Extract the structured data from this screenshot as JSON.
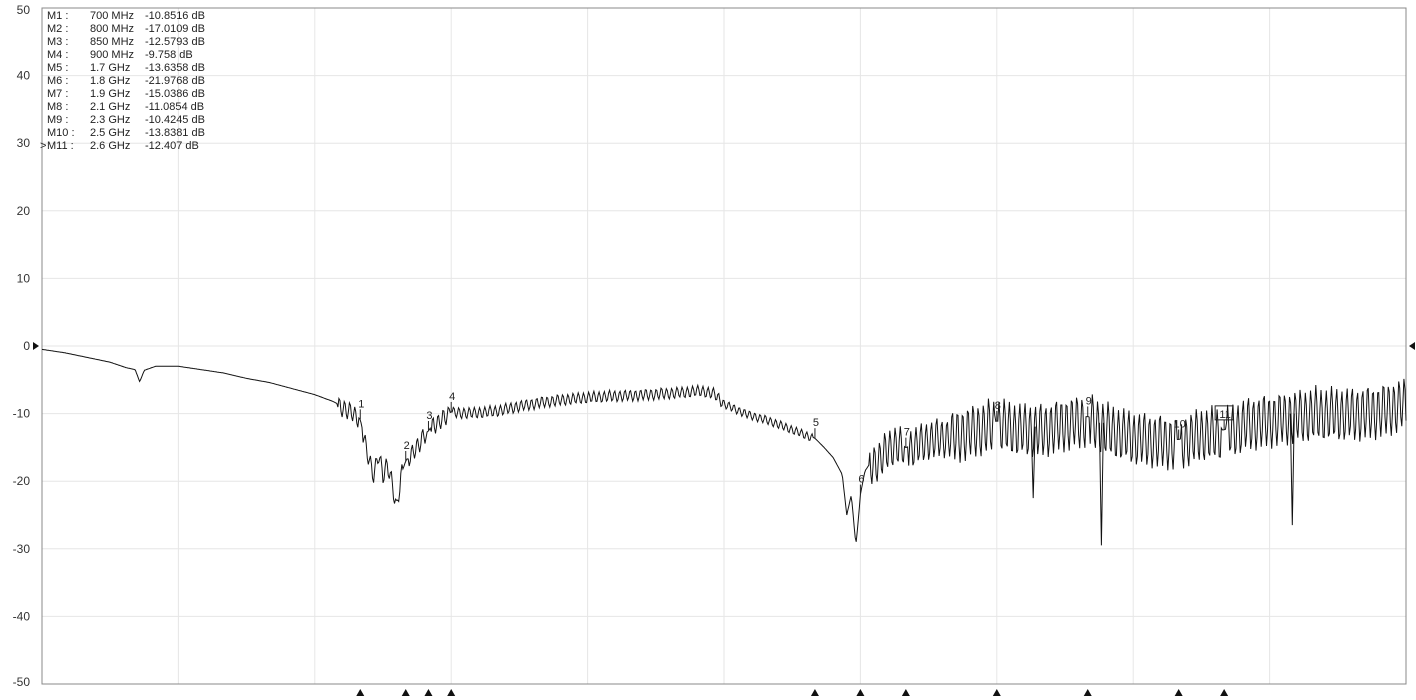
{
  "chart_data": {
    "type": "line",
    "title": "",
    "xlabel": "",
    "ylabel": "",
    "ylim": [
      -50,
      50
    ],
    "yticks": [
      50,
      40,
      30,
      20,
      10,
      0,
      -10,
      -20,
      -30,
      -40,
      -50
    ],
    "grid": true,
    "reference_level": 0,
    "active_marker": "M11",
    "markers": [
      {
        "id": "M1",
        "num": "1",
        "freq": "700 MHz",
        "freq_mhz": 700,
        "value": "-10.8516",
        "unit": "dB"
      },
      {
        "id": "M2",
        "num": "2",
        "freq": "800 MHz",
        "freq_mhz": 800,
        "value": "-17.0109",
        "unit": "dB"
      },
      {
        "id": "M3",
        "num": "3",
        "freq": "850 MHz",
        "freq_mhz": 850,
        "value": "-12.5793",
        "unit": "dB"
      },
      {
        "id": "M4",
        "num": "4",
        "freq": "900 MHz",
        "freq_mhz": 900,
        "value": "-9.758",
        "unit": "dB"
      },
      {
        "id": "M5",
        "num": "5",
        "freq": "1.7 GHz",
        "freq_mhz": 1700,
        "value": "-13.6358",
        "unit": "dB"
      },
      {
        "id": "M6",
        "num": "6",
        "freq": "1.8 GHz",
        "freq_mhz": 1800,
        "value": "-21.9768",
        "unit": "dB"
      },
      {
        "id": "M7",
        "num": "7",
        "freq": "1.9 GHz",
        "freq_mhz": 1900,
        "value": "-15.0386",
        "unit": "dB"
      },
      {
        "id": "M8",
        "num": "8",
        "freq": "2.1 GHz",
        "freq_mhz": 2100,
        "value": "-11.0854",
        "unit": "dB"
      },
      {
        "id": "M9",
        "num": "9",
        "freq": "2.3 GHz",
        "freq_mhz": 2300,
        "value": "-10.4245",
        "unit": "dB"
      },
      {
        "id": "M10",
        "num": "10",
        "freq": "2.5 GHz",
        "freq_mhz": 2500,
        "value": "-13.8381",
        "unit": "dB"
      },
      {
        "id": "M11",
        "num": "11",
        "freq": "2.6 GHz",
        "freq_mhz": 2600,
        "value": "-12.407",
        "unit": "dB"
      }
    ],
    "series": [
      {
        "values": [
          [
            0,
            -0.5
          ],
          [
            50,
            -1.0
          ],
          [
            100,
            -1.7
          ],
          [
            150,
            -2.4
          ],
          [
            185,
            -3.2
          ],
          [
            205,
            -3.5
          ],
          [
            215,
            -5.3
          ],
          [
            225,
            -3.6
          ],
          [
            250,
            -3.0
          ],
          [
            300,
            -3.0
          ],
          [
            350,
            -3.5
          ],
          [
            400,
            -4.0
          ],
          [
            450,
            -4.8
          ],
          [
            500,
            -5.4
          ],
          [
            550,
            -6.3
          ],
          [
            600,
            -7.2
          ],
          [
            640,
            -8.2
          ],
          [
            680,
            -9.6
          ],
          [
            700,
            -10.85
          ],
          [
            710,
            -14.0
          ],
          [
            720,
            -17.0
          ],
          [
            730,
            -19.0
          ],
          [
            740,
            -15.5
          ],
          [
            750,
            -19.0
          ],
          [
            760,
            -17.5
          ],
          [
            770,
            -20.0
          ],
          [
            780,
            -23.8
          ],
          [
            790,
            -19.0
          ],
          [
            800,
            -17.01
          ],
          [
            810,
            -16.0
          ],
          [
            820,
            -15.0
          ],
          [
            830,
            -14.5
          ],
          [
            840,
            -13.0
          ],
          [
            850,
            -12.58
          ],
          [
            860,
            -11.5
          ],
          [
            870,
            -11.5
          ],
          [
            880,
            -10.5
          ],
          [
            890,
            -10.0
          ],
          [
            900,
            -9.76
          ],
          [
            950,
            -9.8
          ],
          [
            1000,
            -9.5
          ],
          [
            1050,
            -8.8
          ],
          [
            1100,
            -8.2
          ],
          [
            1150,
            -7.8
          ],
          [
            1200,
            -7.5
          ],
          [
            1250,
            -7.3
          ],
          [
            1300,
            -7.2
          ],
          [
            1350,
            -7.0
          ],
          [
            1400,
            -6.8
          ],
          [
            1450,
            -6.5
          ],
          [
            1480,
            -7.0
          ],
          [
            1500,
            -8.5
          ],
          [
            1550,
            -10.0
          ],
          [
            1600,
            -11.0
          ],
          [
            1650,
            -12.3
          ],
          [
            1700,
            -13.64
          ],
          [
            1720,
            -15.0
          ],
          [
            1740,
            -16.5
          ],
          [
            1760,
            -19.0
          ],
          [
            1770,
            -25.0
          ],
          [
            1780,
            -22.0
          ],
          [
            1790,
            -29.5
          ],
          [
            1795,
            -26.0
          ],
          [
            1800,
            -21.98
          ],
          [
            1810,
            -18.5
          ],
          [
            1820,
            -17.5
          ],
          [
            1840,
            -16.5
          ],
          [
            1860,
            -15.0
          ],
          [
            1880,
            -14.0
          ],
          [
            1900,
            -15.04
          ],
          [
            1950,
            -13.5
          ],
          [
            2000,
            -13.0
          ],
          [
            2050,
            -12.0
          ],
          [
            2100,
            -11.09
          ],
          [
            2150,
            -11.8
          ],
          [
            2200,
            -12.0
          ],
          [
            2250,
            -11.0
          ],
          [
            2300,
            -10.42
          ],
          [
            2350,
            -12.0
          ],
          [
            2400,
            -13.0
          ],
          [
            2450,
            -13.5
          ],
          [
            2500,
            -13.84
          ],
          [
            2550,
            -12.5
          ],
          [
            2600,
            -12.41
          ],
          [
            2650,
            -11.0
          ],
          [
            2700,
            -10.5
          ],
          [
            2750,
            -10.0
          ],
          [
            2800,
            -9.5
          ],
          [
            2850,
            -9.5
          ],
          [
            2900,
            -9.5
          ],
          [
            2950,
            -9.0
          ],
          [
            3000,
            -8.0
          ]
        ]
      }
    ]
  }
}
